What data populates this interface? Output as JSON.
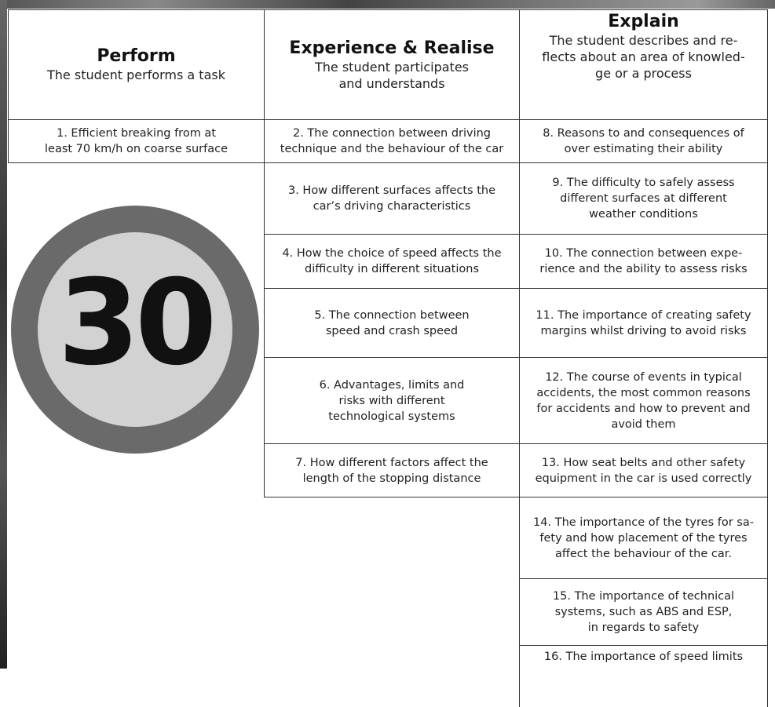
{
  "header": [
    {
      "title": "Perform",
      "subtitle": [
        "The student performs a task"
      ]
    },
    {
      "title": "Experience & Realise",
      "subtitle": [
        "The student participates",
        "and understands"
      ]
    },
    {
      "title": "Explain",
      "subtitle": [
        "The student describes and re-",
        "flects about an area of knowled-",
        "ge or a process"
      ]
    }
  ],
  "columns": [
    [
      [
        "1. Efficient breaking from at",
        "least 70 km/h on coarse surface"
      ]
    ],
    [
      [
        "2. The connection between driving",
        "technique and the behaviour of the car"
      ],
      [
        "3. How different surfaces affects the",
        "car’s driving characteristics"
      ],
      [
        "4. How the choice of speed affects the",
        "difficulty in different situations"
      ],
      [
        "5. The connection between",
        "speed and crash speed"
      ],
      [
        "6. Advantages, limits and",
        "risks with different",
        "technological systems"
      ],
      [
        "7. How different factors affect the",
        "length of the stopping distance"
      ]
    ],
    [
      [
        "8. Reasons to and consequences of",
        "over estimating their ability"
      ],
      [
        "9. The difficulty to safely assess",
        "different surfaces at different",
        "weather conditions"
      ],
      [
        "10. The connection between expe-",
        "rience and the ability to assess risks"
      ],
      [
        "11. The importance of creating safety",
        "margins whilst driving to avoid risks"
      ],
      [
        "12. The course of events in typical",
        "accidents, the most common reasons",
        "for accidents and how to prevent and",
        "avoid them"
      ],
      [
        "13. How seat belts and other safety",
        "equipment in the car is used correctly"
      ],
      [
        "14. The importance of the tyres for sa-",
        "fety and how placement of the tyres",
        "affect the behaviour of the car."
      ],
      [
        "15. The importance of technical",
        "systems, such as ABS and ESP,",
        "in regards to safety"
      ],
      [
        "16. The importance of speed limits"
      ]
    ]
  ],
  "sign": "30"
}
